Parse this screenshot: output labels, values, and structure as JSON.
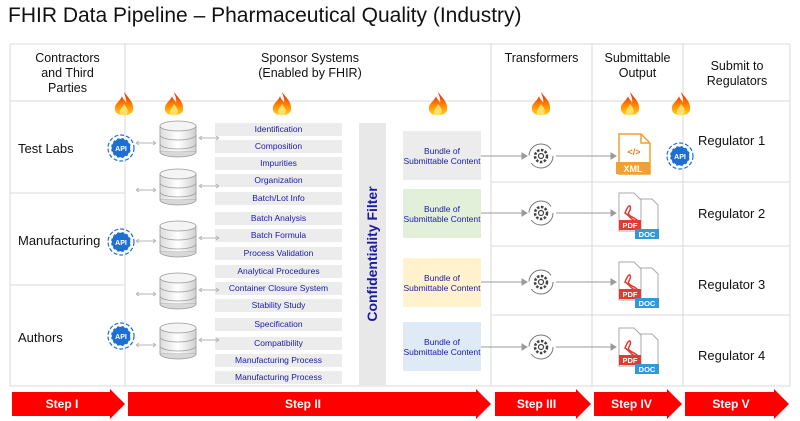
{
  "title": "FHIR Data Pipeline – Pharmaceutical Quality (Industry)",
  "columns": {
    "contractors": [
      "Contractors",
      "and Third",
      "Parties"
    ],
    "sponsor": [
      "Sponsor Systems",
      "(Enabled by FHIR)"
    ],
    "transformers": "Transformers",
    "output": [
      "Submittable",
      "Output"
    ],
    "submit": [
      "Submit to",
      "Regulators"
    ]
  },
  "rows": [
    "Test Labs",
    "Manufacturing",
    "Authors"
  ],
  "items": [
    "Identification",
    "Composition",
    "Impurities",
    "Organization",
    "Batch/Lot Info",
    "Batch Analysis",
    "Batch Formula",
    "Process Validation",
    "Analytical Procedures",
    "Container Closure System",
    "Stability Study",
    "Specification",
    "Compatibility",
    "Manufacturing Process",
    "Manufacturing Process"
  ],
  "filter_label": "Confidentiality Filter",
  "bundle_label": "Bundle of Submittable Content",
  "regulators": [
    "Regulator 1",
    "Regulator 2",
    "Regulator 3",
    "Regulator 4"
  ],
  "icons": {
    "api": "API",
    "xml": "XML",
    "pdf": "PDF",
    "doc": "DOC",
    "code": "</>"
  },
  "steps": [
    "Step I",
    "Step II",
    "Step III",
    "Step IV",
    "Step V"
  ],
  "colors": {
    "link_blue": "#1a1aa6",
    "step_red": "#ff0000",
    "api_blue": "#1f6fd0",
    "bundle_1": "#ececec",
    "bundle_2": "#e2f0d9",
    "bundle_3": "#fff2cc",
    "bundle_4": "#deebf7",
    "xml_orange": "#f0a030",
    "pdf_red": "#e03c31",
    "doc_blue": "#2e9ad8"
  }
}
